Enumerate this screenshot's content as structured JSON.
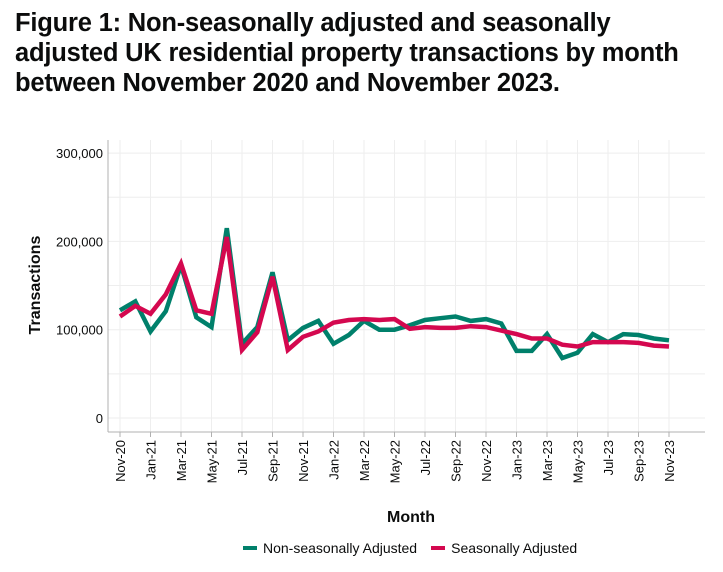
{
  "title": "Figure 1: Non-seasonally adjusted and seasonally adjusted UK residential property transactions by month between November 2020 and November 2023.",
  "chart_data": {
    "type": "line",
    "xlabel": "Month",
    "ylabel": "Transactions",
    "ylim": [
      0,
      300000
    ],
    "yticks": [
      0,
      100000,
      200000,
      300000
    ],
    "ytick_labels": [
      "0",
      "100,000",
      "200,000",
      "300,000"
    ],
    "x": [
      "Nov-20",
      "Dec-20",
      "Jan-21",
      "Feb-21",
      "Mar-21",
      "Apr-21",
      "May-21",
      "Jun-21",
      "Jul-21",
      "Aug-21",
      "Sep-21",
      "Oct-21",
      "Nov-21",
      "Dec-21",
      "Jan-22",
      "Feb-22",
      "Mar-22",
      "Apr-22",
      "May-22",
      "Jun-22",
      "Jul-22",
      "Aug-22",
      "Sep-22",
      "Oct-22",
      "Nov-22",
      "Dec-22",
      "Jan-23",
      "Feb-23",
      "Mar-23",
      "Apr-23",
      "May-23",
      "Jun-23",
      "Jul-23",
      "Aug-23",
      "Sep-23",
      "Oct-23",
      "Nov-23"
    ],
    "xtick_labels": [
      "Nov-20",
      "Jan-21",
      "Mar-21",
      "May-21",
      "Jul-21",
      "Sep-21",
      "Nov-21",
      "Jan-22",
      "Mar-22",
      "May-22",
      "Jul-22",
      "Sep-22",
      "Nov-22",
      "Jan-23",
      "Mar-23",
      "May-23",
      "Jul-23",
      "Sep-23",
      "Nov-23"
    ],
    "grid": true,
    "legend_position": "bottom",
    "series": [
      {
        "name": "Non-seasonally Adjusted",
        "color": "#00806b",
        "values": [
          122000,
          132000,
          98000,
          121000,
          173000,
          114000,
          103000,
          215000,
          84000,
          103000,
          165000,
          88000,
          102000,
          110000,
          84000,
          94000,
          110000,
          100000,
          100000,
          105000,
          111000,
          113000,
          115000,
          110000,
          112000,
          107000,
          76000,
          76000,
          95000,
          68000,
          74000,
          95000,
          86000,
          95000,
          94000,
          90000,
          88000
        ]
      },
      {
        "name": "Seasonally Adjusted",
        "color": "#d4084f",
        "values": [
          115000,
          127000,
          118000,
          140000,
          175000,
          122000,
          118000,
          205000,
          77000,
          97000,
          160000,
          77000,
          92000,
          98000,
          108000,
          111000,
          112000,
          111000,
          112000,
          101000,
          103000,
          102000,
          102000,
          104000,
          103000,
          99000,
          95000,
          90000,
          90000,
          83000,
          81000,
          86000,
          86000,
          86000,
          85000,
          82000,
          81000
        ]
      }
    ]
  }
}
